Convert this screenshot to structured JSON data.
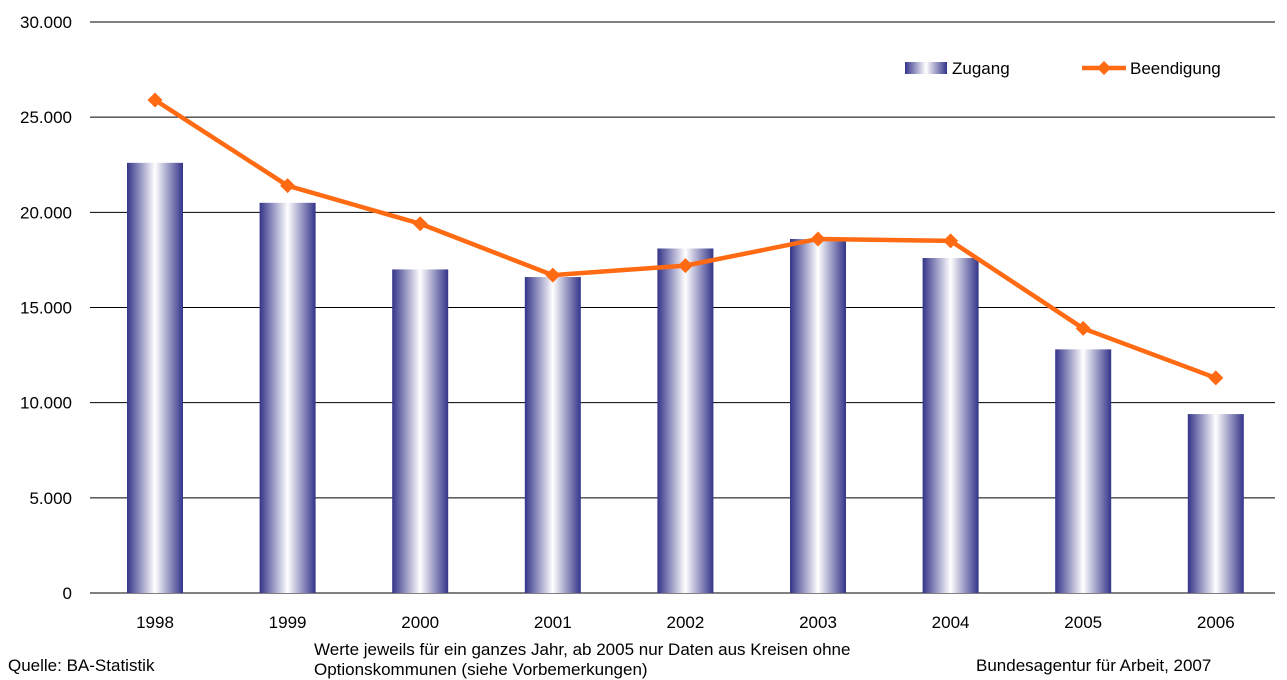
{
  "chart_data": {
    "type": "bar",
    "categories": [
      "1998",
      "1999",
      "2000",
      "2001",
      "2002",
      "2003",
      "2004",
      "2005",
      "2006"
    ],
    "series": [
      {
        "name": "Zugang",
        "type": "bar",
        "values": [
          22600,
          20500,
          17000,
          16600,
          18100,
          18600,
          17600,
          12800,
          9400
        ]
      },
      {
        "name": "Beendigung",
        "type": "line",
        "values": [
          25900,
          21400,
          19400,
          16700,
          17200,
          18600,
          18500,
          13900,
          11300
        ]
      }
    ],
    "ylim": [
      0,
      30000
    ],
    "yticks": [
      0,
      5000,
      10000,
      15000,
      20000,
      25000,
      30000
    ],
    "ytick_labels": [
      "0",
      "5.000",
      "10.000",
      "15.000",
      "20.000",
      "25.000",
      "30.000"
    ],
    "grid": true,
    "legend_position": "top-right",
    "colors": {
      "bar_dark": "#3a3a8c",
      "bar_light": "#ffffff",
      "line": "#ff6a13",
      "grid": "#000000"
    }
  },
  "footer": {
    "source": "Quelle: BA-Statistik",
    "note": "Werte jeweils für ein ganzes Jahr, ab 2005 nur Daten aus Kreisen ohne Optionskommunen (siehe Vorbemerkungen)",
    "copyright": "Bundesagentur für Arbeit, 2007"
  }
}
